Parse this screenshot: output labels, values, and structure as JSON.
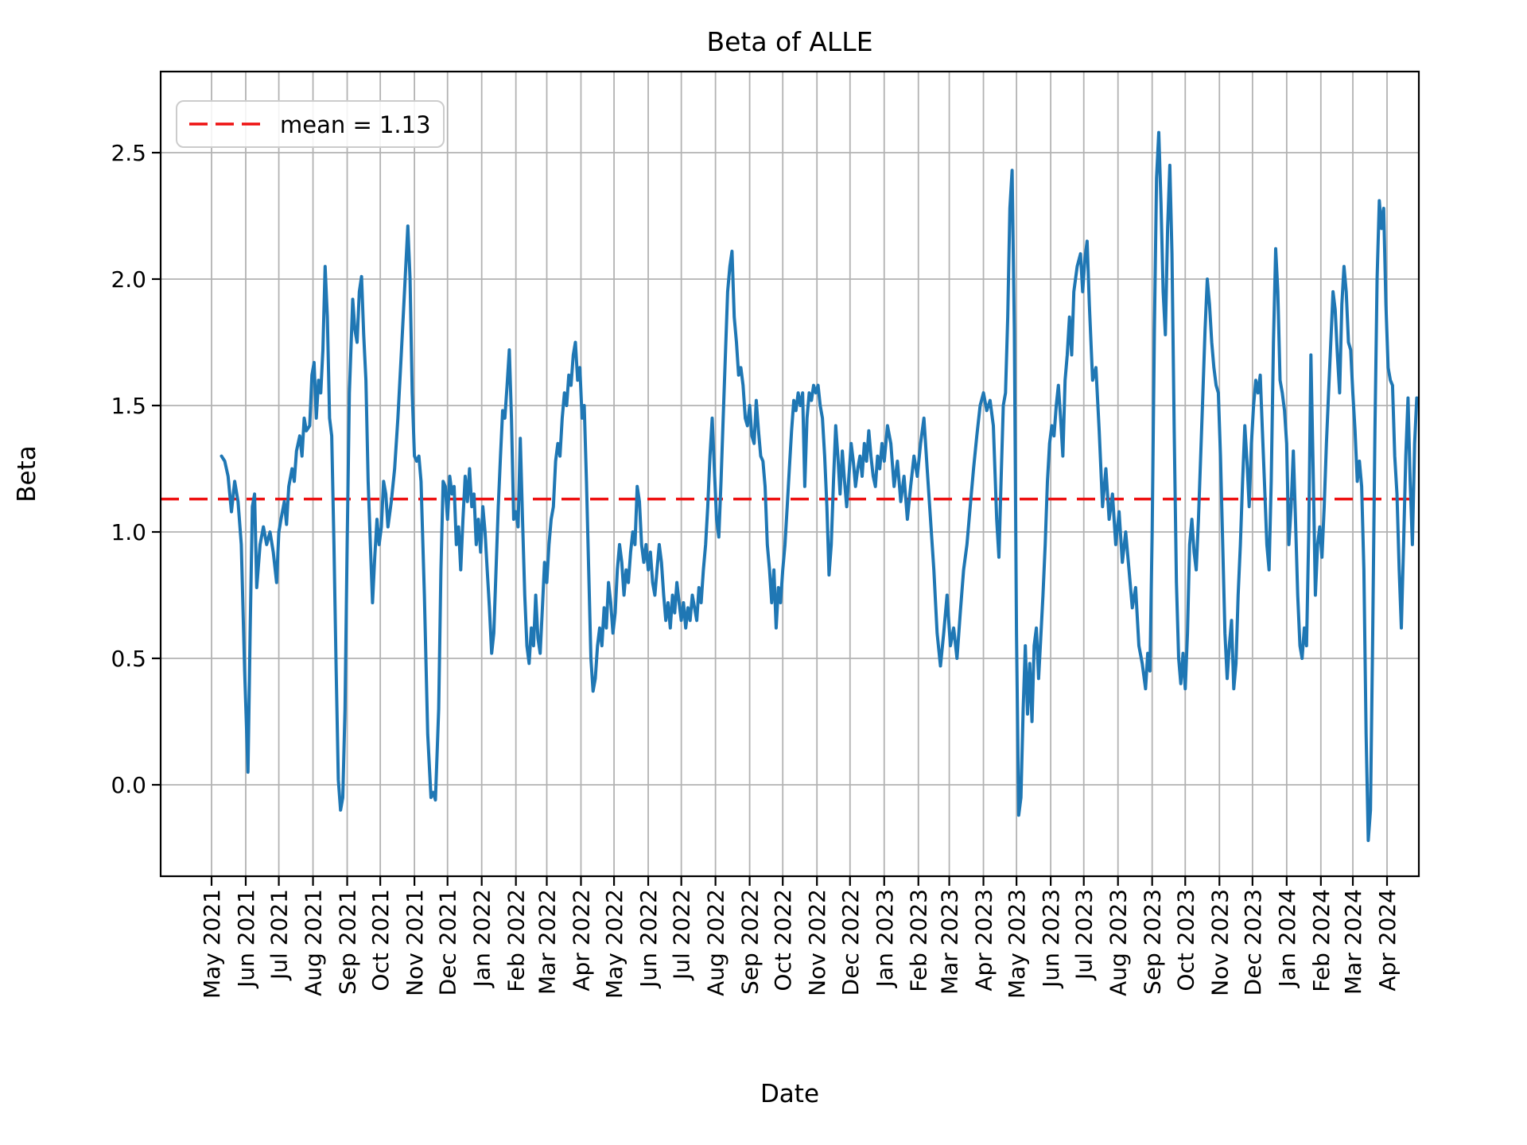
{
  "figure": {
    "title": "Beta of ALLE",
    "xlabel": "Date",
    "ylabel": "Beta",
    "legend_label": "mean = 1.13",
    "mean_value": 1.13
  },
  "colors": {
    "series_line": "#1f77b4",
    "mean_line": "#ee1111",
    "grid": "#b2b2b2",
    "spine": "#000000",
    "legend_border": "#cccccc",
    "background": "#ffffff"
  },
  "chart_data": {
    "type": "line",
    "title": "Beta of ALLE",
    "xlabel": "Date",
    "ylabel": "Beta",
    "grid": true,
    "legend_position": "upper left",
    "legend_entries": [
      "mean = 1.13"
    ],
    "mean": 1.13,
    "ylim": [
      -0.36,
      2.82
    ],
    "y_tick_labels": [
      "0.0",
      "0.5",
      "1.0",
      "1.5",
      "2.0",
      "2.5"
    ],
    "y_ticks": [
      0.0,
      0.5,
      1.0,
      1.5,
      2.0,
      2.5
    ],
    "x_tick_labels": [
      "May 2021",
      "Jun 2021",
      "Jul 2021",
      "Aug 2021",
      "Sep 2021",
      "Oct 2021",
      "Nov 2021",
      "Dec 2021",
      "Jan 2022",
      "Feb 2022",
      "Mar 2022",
      "Apr 2022",
      "May 2022",
      "Jun 2022",
      "Jul 2022",
      "Aug 2022",
      "Sep 2022",
      "Oct 2022",
      "Nov 2022",
      "Dec 2022",
      "Jan 2023",
      "Feb 2023",
      "Mar 2023",
      "Apr 2023",
      "May 2023",
      "Jun 2023",
      "Jul 2023",
      "Aug 2023",
      "Sep 2023",
      "Oct 2023",
      "Nov 2023",
      "Dec 2023",
      "Jan 2024",
      "Feb 2024",
      "Mar 2024",
      "Apr 2024"
    ],
    "x_tick_day_offsets": [
      0,
      31,
      61,
      92,
      123,
      153,
      184,
      214,
      245,
      276,
      304,
      335,
      365,
      396,
      426,
      457,
      488,
      518,
      549,
      579,
      610,
      641,
      669,
      700,
      730,
      761,
      791,
      822,
      853,
      883,
      914,
      944,
      975,
      1006,
      1035,
      1066
    ],
    "x_days_since_2021_05_01": [
      9,
      12,
      15,
      18,
      21,
      24,
      27,
      30,
      33,
      35,
      37,
      39,
      41,
      44,
      47,
      50,
      53,
      56,
      59,
      61,
      63,
      66,
      68,
      70,
      73,
      75,
      77,
      80,
      82,
      84,
      86,
      89,
      91,
      93,
      95,
      97,
      99,
      101,
      103,
      105,
      107,
      109,
      111,
      113,
      115,
      117,
      119,
      121,
      123,
      125,
      128,
      130,
      132,
      134,
      136,
      138,
      140,
      142,
      144,
      146,
      148,
      150,
      152,
      154,
      156,
      158,
      160,
      163,
      166,
      169,
      172,
      175,
      178,
      180,
      182,
      184,
      186,
      188,
      190,
      193,
      196,
      199,
      201,
      203,
      206,
      208,
      210,
      212,
      214,
      216,
      218,
      220,
      222,
      224,
      226,
      228,
      230,
      232,
      234,
      236,
      238,
      240,
      242,
      244,
      246,
      248,
      250,
      252,
      254,
      256,
      258,
      260,
      262,
      264,
      266,
      268,
      270,
      272,
      274,
      276,
      278,
      280,
      282,
      284,
      286,
      288,
      290,
      292,
      294,
      296,
      298,
      300,
      302,
      304,
      306,
      308,
      310,
      312,
      314,
      316,
      318,
      320,
      322,
      324,
      326,
      328,
      330,
      332,
      334,
      336,
      338,
      340,
      342,
      344,
      346,
      348,
      350,
      352,
      354,
      356,
      358,
      360,
      362,
      364,
      366,
      368,
      370,
      372,
      374,
      376,
      378,
      380,
      382,
      384,
      386,
      388,
      390,
      392,
      394,
      396,
      398,
      400,
      402,
      404,
      406,
      408,
      410,
      412,
      414,
      416,
      418,
      420,
      422,
      424,
      426,
      428,
      430,
      432,
      434,
      436,
      438,
      440,
      442,
      444,
      446,
      448,
      450,
      452,
      454,
      456,
      458,
      460,
      462,
      464,
      466,
      468,
      470,
      472,
      474,
      476,
      478,
      480,
      482,
      484,
      486,
      488,
      490,
      492,
      494,
      496,
      498,
      500,
      502,
      504,
      506,
      508,
      510,
      512,
      514,
      516,
      518,
      520,
      522,
      524,
      526,
      528,
      530,
      532,
      534,
      536,
      538,
      540,
      542,
      544,
      546,
      548,
      550,
      552,
      554,
      556,
      558,
      560,
      562,
      564,
      566,
      568,
      570,
      572,
      574,
      576,
      578,
      580,
      582,
      584,
      586,
      588,
      590,
      592,
      594,
      596,
      598,
      600,
      602,
      604,
      606,
      608,
      610,
      613,
      616,
      619,
      622,
      625,
      628,
      631,
      634,
      637,
      640,
      643,
      646,
      649,
      652,
      655,
      658,
      661,
      664,
      667,
      670,
      673,
      676,
      679,
      682,
      685,
      688,
      691,
      694,
      697,
      700,
      703,
      706,
      709,
      712,
      714,
      716,
      718,
      720,
      722,
      724,
      726,
      728,
      730,
      732,
      734,
      736,
      738,
      740,
      742,
      744,
      746,
      748,
      750,
      752,
      754,
      756,
      758,
      760,
      762,
      764,
      766,
      768,
      770,
      772,
      774,
      776,
      778,
      780,
      782,
      785,
      788,
      790,
      792,
      794,
      796,
      799,
      802,
      805,
      808,
      811,
      814,
      817,
      820,
      823,
      826,
      829,
      832,
      835,
      838,
      841,
      844,
      847,
      849,
      851,
      853,
      855,
      857,
      859,
      861,
      863,
      865,
      867,
      869,
      871,
      873,
      875,
      877,
      879,
      881,
      883,
      885,
      887,
      889,
      891,
      893,
      895,
      897,
      899,
      901,
      903,
      905,
      907,
      909,
      911,
      913,
      915,
      917,
      919,
      921,
      923,
      925,
      927,
      929,
      931,
      933,
      935,
      937,
      939,
      941,
      943,
      945,
      947,
      949,
      951,
      953,
      955,
      957,
      959,
      961,
      963,
      965,
      967,
      969,
      971,
      973,
      975,
      977,
      979,
      981,
      983,
      985,
      987,
      989,
      991,
      993,
      995,
      997,
      999,
      1001,
      1003,
      1005,
      1007,
      1009,
      1011,
      1013,
      1015,
      1017,
      1019,
      1021,
      1023,
      1025,
      1027,
      1029,
      1031,
      1033,
      1035,
      1037,
      1039,
      1041,
      1043,
      1045,
      1047,
      1049,
      1051,
      1053,
      1055,
      1057,
      1059,
      1061,
      1063,
      1065,
      1067,
      1069,
      1071,
      1073,
      1075,
      1077,
      1079,
      1081,
      1083,
      1085,
      1087,
      1089,
      1091,
      1093
    ],
    "y": [
      1.3,
      1.28,
      1.22,
      1.08,
      1.2,
      1.12,
      0.95,
      0.45,
      0.05,
      0.6,
      1.1,
      1.15,
      0.78,
      0.95,
      1.02,
      0.95,
      1.0,
      0.92,
      0.8,
      1.0,
      1.05,
      1.12,
      1.03,
      1.18,
      1.25,
      1.2,
      1.32,
      1.38,
      1.3,
      1.45,
      1.4,
      1.42,
      1.62,
      1.67,
      1.45,
      1.6,
      1.55,
      1.72,
      2.05,
      1.85,
      1.45,
      1.38,
      0.95,
      0.45,
      0.02,
      -0.1,
      -0.05,
      0.3,
      0.95,
      1.55,
      1.92,
      1.8,
      1.75,
      1.95,
      2.01,
      1.78,
      1.6,
      1.2,
      0.95,
      0.72,
      0.9,
      1.05,
      0.95,
      1.02,
      1.2,
      1.15,
      1.02,
      1.12,
      1.25,
      1.45,
      1.7,
      1.95,
      2.21,
      2.0,
      1.55,
      1.3,
      1.28,
      1.3,
      1.2,
      0.75,
      0.2,
      -0.05,
      -0.03,
      -0.06,
      0.3,
      0.85,
      1.2,
      1.18,
      1.05,
      1.22,
      1.15,
      1.18,
      0.95,
      1.02,
      0.85,
      1.05,
      1.22,
      1.12,
      1.25,
      1.1,
      1.15,
      0.95,
      1.05,
      0.92,
      1.1,
      1.0,
      0.85,
      0.7,
      0.52,
      0.6,
      0.85,
      1.1,
      1.3,
      1.48,
      1.45,
      1.58,
      1.72,
      1.45,
      1.05,
      1.08,
      1.02,
      1.37,
      1.05,
      0.75,
      0.55,
      0.48,
      0.62,
      0.55,
      0.75,
      0.58,
      0.52,
      0.7,
      0.88,
      0.8,
      0.95,
      1.05,
      1.1,
      1.28,
      1.35,
      1.3,
      1.45,
      1.55,
      1.5,
      1.62,
      1.58,
      1.7,
      1.75,
      1.6,
      1.65,
      1.45,
      1.5,
      1.2,
      0.85,
      0.5,
      0.37,
      0.42,
      0.55,
      0.62,
      0.55,
      0.7,
      0.62,
      0.8,
      0.72,
      0.6,
      0.68,
      0.85,
      0.95,
      0.88,
      0.75,
      0.85,
      0.8,
      0.92,
      1.0,
      0.95,
      1.18,
      1.12,
      0.95,
      0.88,
      0.95,
      0.85,
      0.92,
      0.8,
      0.75,
      0.85,
      0.95,
      0.88,
      0.75,
      0.65,
      0.72,
      0.62,
      0.75,
      0.68,
      0.8,
      0.72,
      0.65,
      0.72,
      0.62,
      0.7,
      0.65,
      0.75,
      0.7,
      0.65,
      0.78,
      0.72,
      0.85,
      0.95,
      1.1,
      1.3,
      1.45,
      1.25,
      1.05,
      0.98,
      1.2,
      1.45,
      1.7,
      1.95,
      2.05,
      2.11,
      1.85,
      1.75,
      1.62,
      1.65,
      1.58,
      1.45,
      1.42,
      1.5,
      1.38,
      1.35,
      1.52,
      1.4,
      1.3,
      1.28,
      1.18,
      0.95,
      0.85,
      0.72,
      0.85,
      0.62,
      0.78,
      0.72,
      0.85,
      0.95,
      1.1,
      1.25,
      1.4,
      1.52,
      1.48,
      1.55,
      1.5,
      1.55,
      1.18,
      1.45,
      1.55,
      1.52,
      1.58,
      1.55,
      1.58,
      1.5,
      1.45,
      1.3,
      1.1,
      0.83,
      0.95,
      1.2,
      1.42,
      1.3,
      1.15,
      1.32,
      1.2,
      1.1,
      1.22,
      1.35,
      1.28,
      1.18,
      1.25,
      1.3,
      1.22,
      1.35,
      1.28,
      1.4,
      1.3,
      1.22,
      1.18,
      1.3,
      1.25,
      1.35,
      1.28,
      1.42,
      1.35,
      1.18,
      1.28,
      1.12,
      1.22,
      1.05,
      1.18,
      1.3,
      1.22,
      1.35,
      1.45,
      1.25,
      1.05,
      0.85,
      0.6,
      0.47,
      0.6,
      0.75,
      0.55,
      0.62,
      0.5,
      0.68,
      0.85,
      0.95,
      1.1,
      1.25,
      1.38,
      1.5,
      1.55,
      1.48,
      1.52,
      1.42,
      1.05,
      0.9,
      1.2,
      1.5,
      1.55,
      1.85,
      2.28,
      2.43,
      1.8,
      0.6,
      -0.12,
      -0.05,
      0.3,
      0.55,
      0.28,
      0.48,
      0.25,
      0.55,
      0.62,
      0.42,
      0.58,
      0.75,
      0.95,
      1.2,
      1.35,
      1.42,
      1.38,
      1.5,
      1.58,
      1.45,
      1.3,
      1.6,
      1.7,
      1.85,
      1.7,
      1.95,
      2.05,
      2.1,
      1.95,
      2.08,
      2.15,
      1.9,
      1.6,
      1.65,
      1.4,
      1.1,
      1.25,
      1.05,
      1.15,
      0.95,
      1.08,
      0.88,
      1.0,
      0.85,
      0.7,
      0.78,
      0.55,
      0.48,
      0.38,
      0.52,
      0.45,
      1.0,
      1.8,
      2.4,
      2.58,
      2.3,
      1.95,
      1.78,
      2.2,
      2.45,
      2.1,
      1.4,
      0.8,
      0.5,
      0.4,
      0.52,
      0.38,
      0.6,
      0.95,
      1.05,
      0.92,
      0.85,
      1.05,
      1.3,
      1.55,
      1.8,
      2.0,
      1.9,
      1.75,
      1.65,
      1.58,
      1.55,
      1.3,
      0.95,
      0.6,
      0.42,
      0.55,
      0.65,
      0.38,
      0.48,
      0.75,
      0.95,
      1.2,
      1.42,
      1.28,
      1.1,
      1.35,
      1.5,
      1.6,
      1.55,
      1.62,
      1.4,
      1.18,
      0.95,
      0.85,
      1.2,
      1.75,
      2.12,
      1.95,
      1.6,
      1.55,
      1.48,
      1.35,
      0.95,
      1.1,
      1.32,
      1.05,
      0.75,
      0.55,
      0.5,
      0.62,
      0.55,
      1.0,
      1.7,
      1.25,
      0.75,
      0.95,
      1.02,
      0.9,
      1.1,
      1.35,
      1.55,
      1.75,
      1.95,
      1.88,
      1.7,
      1.55,
      1.9,
      2.05,
      1.95,
      1.75,
      1.72,
      1.55,
      1.4,
      1.2,
      1.28,
      1.18,
      0.85,
      0.2,
      -0.22,
      -0.1,
      0.6,
      1.4,
      2.0,
      2.31,
      2.2,
      2.28,
      1.9,
      1.65,
      1.6,
      1.58,
      1.3,
      1.15,
      0.85,
      0.62,
      0.95,
      1.3,
      1.53,
      1.2,
      0.95,
      1.35,
      1.53
    ]
  }
}
